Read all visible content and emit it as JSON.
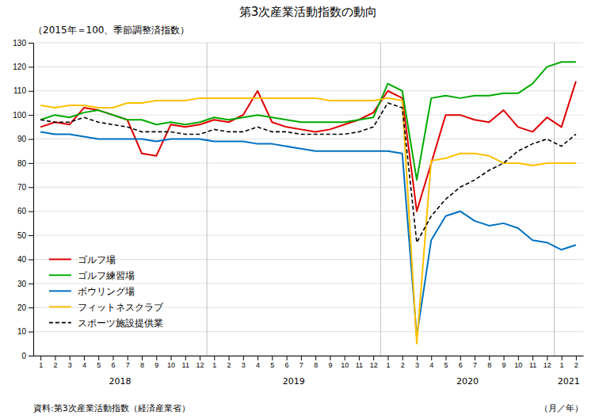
{
  "chart_data": {
    "type": "line",
    "title": "第3次産業活動指数の動向",
    "subtitle": "（2015年＝100、季節調整済指数）",
    "source": "資料:第3次産業活動指数（経済産業省）",
    "xlabel": "（月／年）",
    "categories": [
      "1",
      "2",
      "3",
      "4",
      "5",
      "6",
      "7",
      "8",
      "9",
      "10",
      "11",
      "12",
      "1",
      "2",
      "3",
      "4",
      "5",
      "6",
      "7",
      "8",
      "9",
      "10",
      "11",
      "12",
      "1",
      "2",
      "3",
      "4",
      "5",
      "6",
      "7",
      "8",
      "9",
      "10",
      "11",
      "12",
      "1",
      "2"
    ],
    "year_labels": [
      "2018",
      "2019",
      "2020",
      "2021"
    ],
    "ylim": [
      0,
      130
    ],
    "yticks": [
      0,
      10,
      20,
      30,
      40,
      50,
      60,
      70,
      80,
      90,
      100,
      110,
      120,
      130
    ],
    "grid": true,
    "legend": "lower left",
    "series": [
      {
        "name": "ゴルフ場",
        "color": "#e00000",
        "line_style": "solid",
        "values": [
          95,
          97,
          96,
          103,
          102,
          100,
          98,
          84,
          83,
          96,
          95,
          96,
          98,
          97,
          100,
          110,
          97,
          95,
          94,
          93,
          94,
          96,
          98,
          101,
          110,
          107,
          60,
          80,
          100,
          100,
          98,
          97,
          102,
          95,
          93,
          99,
          95,
          114
        ]
      },
      {
        "name": "ゴルフ練習場",
        "color": "#00aa00",
        "line_style": "solid",
        "values": [
          98,
          100,
          99,
          101,
          102,
          100,
          98,
          98,
          96,
          97,
          96,
          97,
          99,
          98,
          99,
          100,
          99,
          98,
          97,
          97,
          97,
          97,
          98,
          99,
          113,
          110,
          73,
          107,
          108,
          107,
          108,
          108,
          109,
          109,
          113,
          120,
          122,
          122
        ]
      },
      {
        "name": "ボウリング場",
        "color": "#0070c0",
        "line_style": "solid",
        "values": [
          93,
          92,
          92,
          91,
          90,
          90,
          90,
          90,
          89,
          90,
          90,
          90,
          89,
          89,
          89,
          88,
          88,
          87,
          86,
          85,
          85,
          85,
          85,
          85,
          85,
          84,
          8,
          48,
          58,
          60,
          56,
          54,
          55,
          53,
          48,
          47,
          44,
          46
        ]
      },
      {
        "name": "フィットネスクラブ",
        "color": "#ffc000",
        "line_style": "solid",
        "values": [
          104,
          103,
          104,
          104,
          103,
          103,
          105,
          105,
          106,
          106,
          106,
          107,
          107,
          107,
          107,
          107,
          107,
          107,
          107,
          107,
          106,
          106,
          106,
          106,
          107,
          106,
          5,
          81,
          82,
          84,
          84,
          83,
          80,
          80,
          79,
          80,
          80,
          80
        ]
      },
      {
        "name": "スポーツ施設提供業",
        "color": "#000000",
        "line_style": "dashed",
        "values": [
          98,
          97,
          97,
          99,
          97,
          96,
          95,
          93,
          93,
          93,
          92,
          92,
          94,
          93,
          93,
          95,
          93,
          93,
          92,
          92,
          92,
          92,
          93,
          95,
          105,
          103,
          47,
          58,
          65,
          70,
          73,
          77,
          80,
          85,
          88,
          90,
          87,
          92
        ]
      }
    ]
  }
}
